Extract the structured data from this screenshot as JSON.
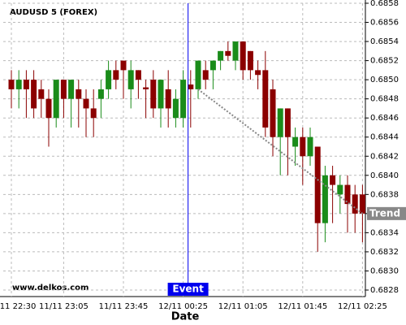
{
  "chart_data": {
    "type": "candlestick",
    "title": "AUDUSD 5 (FOREX)",
    "xlabel": "Date",
    "watermark": "www.delkos.com",
    "categories": [
      "11/11 22:30",
      null,
      null,
      null,
      null,
      null,
      null,
      "11/11 23:05",
      null,
      null,
      null,
      null,
      null,
      null,
      null,
      "11/11 23:45",
      null,
      null,
      null,
      null,
      null,
      null,
      null,
      "12/11 00:25",
      null,
      null,
      null,
      null,
      null,
      null,
      null,
      "12/11 01:05",
      null,
      null,
      null,
      null,
      null,
      null,
      null,
      "12/11 01:45",
      null,
      null,
      null,
      null,
      null,
      null,
      null,
      "12/11 02:25"
    ],
    "open": [
      0.685,
      0.6849,
      0.685,
      0.685,
      0.6849,
      0.6848,
      0.6846,
      0.685,
      0.6848,
      0.6849,
      0.6848,
      0.6847,
      0.6848,
      0.6849,
      0.6851,
      0.6852,
      0.6849,
      0.6851,
      0.68492,
      0.685,
      0.6847,
      0.6849,
      0.6846,
      0.6846,
      0.68495,
      0.6849,
      0.6851,
      0.6851,
      0.6852,
      0.6853,
      0.6852,
      0.6854,
      0.6853,
      0.6851,
      0.6851,
      0.6849,
      0.6844,
      0.6847,
      0.6843,
      0.6844,
      0.6842,
      0.6843,
      0.6835,
      0.684,
      0.6838,
      0.6839,
      0.6838,
      0.6838
    ],
    "high": [
      0.6851,
      0.6851,
      0.6851,
      0.6851,
      0.685,
      0.6849,
      0.685,
      0.685,
      0.685,
      0.685,
      0.6849,
      0.6849,
      0.685,
      0.6852,
      0.6852,
      0.6852,
      0.6852,
      0.6851,
      0.685,
      0.6851,
      0.685,
      0.6851,
      0.6849,
      0.6851,
      0.6851,
      0.6852,
      0.6852,
      0.6852,
      0.6853,
      0.6854,
      0.6854,
      0.6854,
      0.6853,
      0.6852,
      0.6853,
      0.685,
      0.6847,
      0.6847,
      0.6845,
      0.6845,
      0.6845,
      0.6843,
      0.6841,
      0.6841,
      0.684,
      0.684,
      0.6839,
      0.6839
    ],
    "low": [
      0.6847,
      0.6847,
      0.6846,
      0.6846,
      0.6846,
      0.6843,
      0.6845,
      0.6846,
      0.6845,
      0.6845,
      0.6844,
      0.6844,
      0.6846,
      0.6848,
      0.6849,
      0.6848,
      0.6847,
      0.6848,
      0.6846,
      0.6846,
      0.6845,
      0.6845,
      0.6845,
      0.6845,
      0.6845,
      0.6848,
      0.6849,
      0.6849,
      0.6851,
      0.6852,
      0.6851,
      0.685,
      0.685,
      0.6849,
      0.6844,
      0.6842,
      0.684,
      0.684,
      0.6841,
      0.6839,
      0.6841,
      0.6832,
      0.6833,
      0.6835,
      0.6836,
      0.6834,
      0.6834,
      0.6833
    ],
    "close": [
      0.6849,
      0.685,
      0.6849,
      0.6847,
      0.6848,
      0.6846,
      0.685,
      0.6848,
      0.685,
      0.6848,
      0.6847,
      0.6846,
      0.6849,
      0.6851,
      0.685,
      0.6851,
      0.6851,
      0.685,
      0.6849,
      0.6847,
      0.685,
      0.6847,
      0.6848,
      0.685,
      0.6849,
      0.6852,
      0.685,
      0.6852,
      0.6853,
      0.68525,
      0.6854,
      0.6851,
      0.6851,
      0.68505,
      0.6845,
      0.6844,
      0.6847,
      0.6844,
      0.6844,
      0.6842,
      0.6844,
      0.6835,
      0.684,
      0.6839,
      0.6839,
      0.6837,
      0.6836,
      0.6836
    ],
    "up_color": "#1a8c1a",
    "down_color": "#8b0000",
    "ylim": [
      0.6828,
      0.6858
    ],
    "yticks": [
      0.6828,
      {
        "value": 0.683,
        "label": "0.6830"
      },
      0.6832,
      0.6834,
      0.6836,
      0.6838,
      {
        "value": 0.684,
        "label": "0.6840"
      },
      0.6842,
      0.6844,
      0.6846,
      0.6848,
      {
        "value": 0.685,
        "label": "0.6850"
      },
      0.6852,
      0.6854,
      0.6856,
      0.6858
    ],
    "grid": true,
    "event": {
      "label": "Event",
      "color": "#0000ee"
    },
    "trend": {
      "label": "Trend",
      "from_index": 25,
      "from_value": 0.6849,
      "to_index": 47,
      "to_value": 0.6836,
      "color": "#888888"
    }
  }
}
